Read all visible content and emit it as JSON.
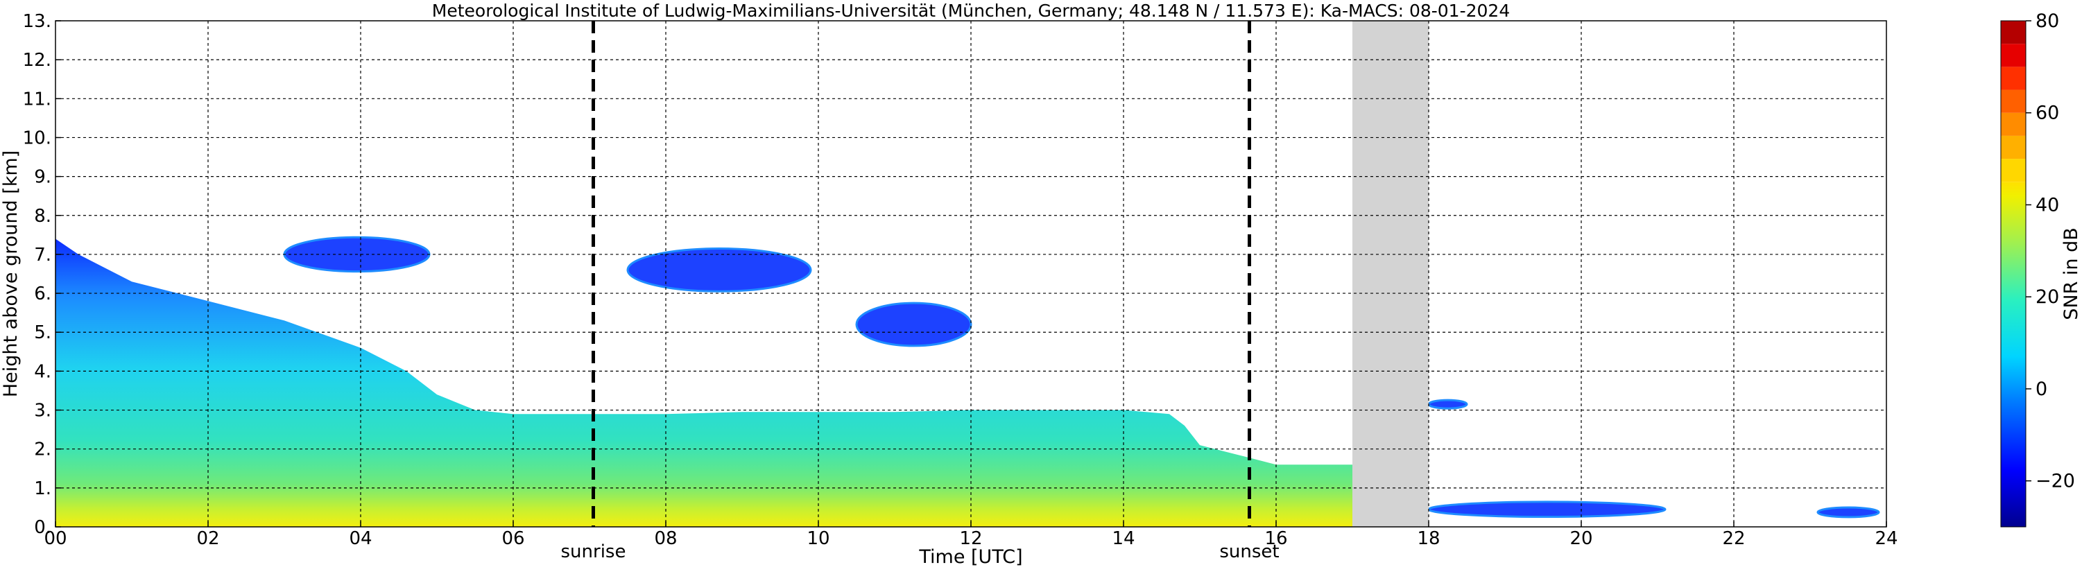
{
  "chart_data": {
    "type": "heatmap",
    "title": "Meteorological Institute of Ludwig-Maximilians-Universität (München, Germany; 48.148 N / 11.573 E):    Ka-MACS: 08-01-2024",
    "xlabel": "Time [UTC]",
    "ylabel": "Height above ground [km]",
    "xlim": [
      0,
      24
    ],
    "ylim": [
      0,
      13
    ],
    "x_ticks": [
      "00",
      "02",
      "04",
      "06",
      "08",
      "10",
      "12",
      "14",
      "16",
      "18",
      "20",
      "22",
      "24"
    ],
    "y_ticks": [
      "0.",
      "1.",
      "2.",
      "3.",
      "4.",
      "5.",
      "6.",
      "7.",
      "8.",
      "9.",
      "10.",
      "11.",
      "12.",
      "13."
    ],
    "grid": true,
    "markers": [
      {
        "label": "sunrise",
        "time": 7.05
      },
      {
        "label": "sunset",
        "time": 15.65
      }
    ],
    "no_data_interval": [
      17.0,
      18.0
    ],
    "colorbar": {
      "label": "SNR in dB",
      "range": [
        -30,
        80
      ],
      "ticks": [
        "80",
        "60",
        "40",
        "20",
        "0",
        "−20"
      ],
      "tick_values": [
        80,
        60,
        40,
        20,
        0,
        -20
      ],
      "colormap": "jet",
      "discrete_top_levels": [
        {
          "from": 45,
          "to": 50,
          "color": "#ffd700"
        },
        {
          "from": 50,
          "to": 55,
          "color": "#ffb000"
        },
        {
          "from": 55,
          "to": 60,
          "color": "#ff8c00"
        },
        {
          "from": 60,
          "to": 65,
          "color": "#ff6000"
        },
        {
          "from": 65,
          "to": 70,
          "color": "#ff3000"
        },
        {
          "from": 70,
          "to": 75,
          "color": "#e60000"
        },
        {
          "from": 75,
          "to": 80,
          "color": "#b40000"
        }
      ]
    },
    "echo_regions": [
      {
        "kind": "boundary-layer",
        "x": [
          0,
          0.3,
          1,
          2,
          3,
          4,
          4.6,
          5,
          5.5,
          6,
          7,
          8,
          9,
          10,
          11,
          12,
          13,
          14,
          14.6,
          14.8,
          15.0,
          15.6,
          16.0,
          17.0
        ],
        "top": [
          7.4,
          7.0,
          6.3,
          5.8,
          5.3,
          4.6,
          4.0,
          3.4,
          3.0,
          2.9,
          2.9,
          2.9,
          2.95,
          2.95,
          2.95,
          3.0,
          3.0,
          3.0,
          2.9,
          2.6,
          2.1,
          1.8,
          1.6,
          1.6
        ],
        "peak_snr_near_ground": 40
      },
      {
        "kind": "cloud",
        "x_range": [
          3.0,
          4.9
        ],
        "y_range": [
          6.2,
          7.8
        ]
      },
      {
        "kind": "cloud",
        "x_range": [
          7.5,
          9.9
        ],
        "y_range": [
          5.6,
          7.6
        ]
      },
      {
        "kind": "cloud",
        "x_range": [
          10.5,
          12.0
        ],
        "y_range": [
          4.2,
          6.2
        ]
      },
      {
        "kind": "cloud",
        "x_range": [
          18.0,
          18.5
        ],
        "y_range": [
          3.0,
          3.3
        ]
      },
      {
        "kind": "cloud",
        "x_range": [
          18.0,
          21.1
        ],
        "y_range": [
          0.1,
          0.8
        ]
      },
      {
        "kind": "cloud",
        "x_range": [
          23.1,
          23.9
        ],
        "y_range": [
          0.15,
          0.6
        ]
      }
    ]
  }
}
